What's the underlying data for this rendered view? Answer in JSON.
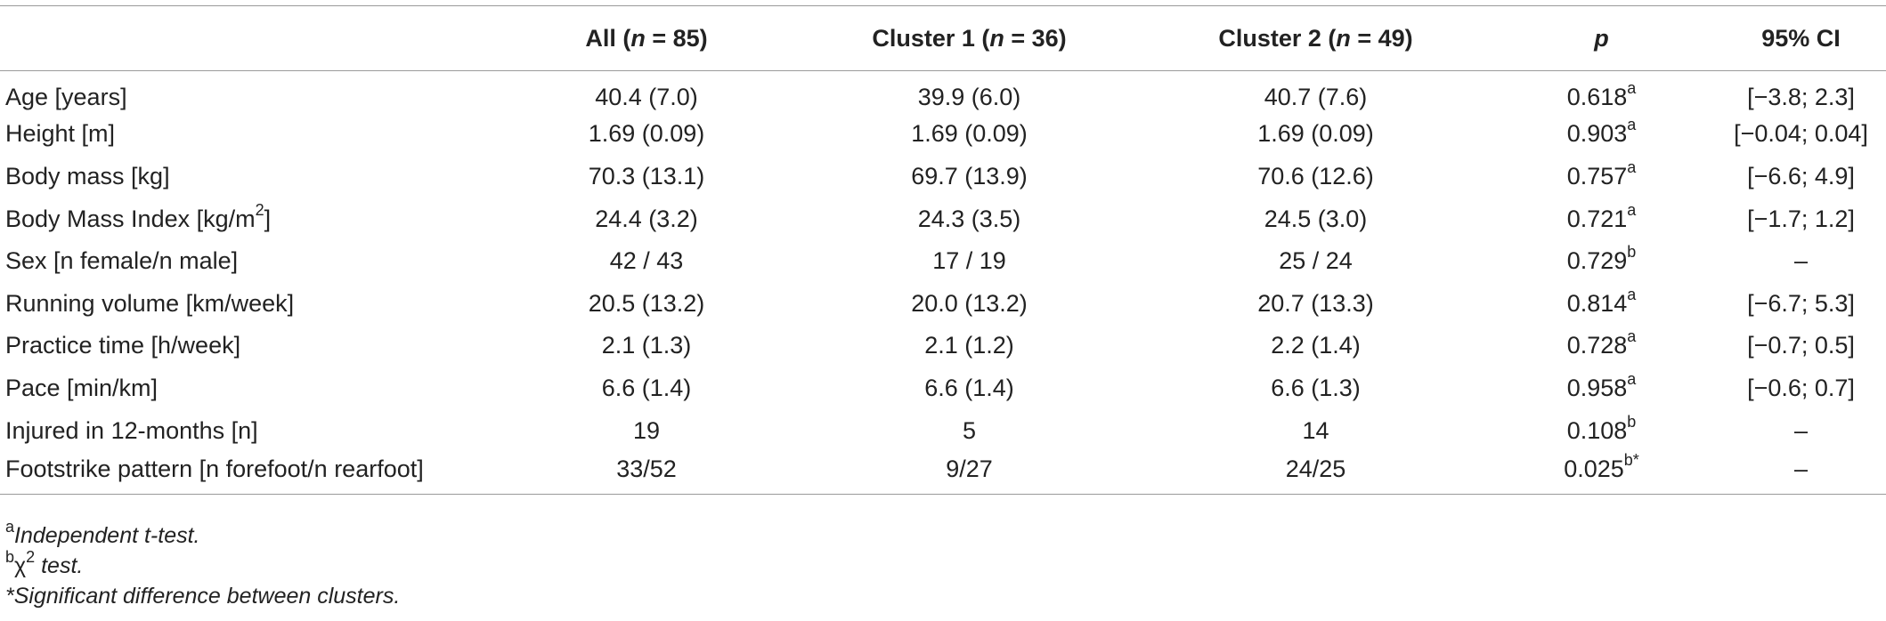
{
  "table": {
    "headers": [
      {
        "text": "",
        "parts": []
      },
      {
        "parts": [
          {
            "t": "All ("
          },
          {
            "t": "n",
            "i": true
          },
          {
            "t": " = 85)"
          }
        ]
      },
      {
        "parts": [
          {
            "t": "Cluster 1 ("
          },
          {
            "t": "n",
            "i": true
          },
          {
            "t": " = 36)"
          }
        ]
      },
      {
        "parts": [
          {
            "t": "Cluster 2 ("
          },
          {
            "t": "n",
            "i": true
          },
          {
            "t": " = 49)"
          }
        ]
      },
      {
        "parts": [
          {
            "t": "p",
            "i": true
          }
        ]
      },
      {
        "parts": [
          {
            "t": "95% CI"
          }
        ]
      }
    ],
    "rows": [
      {
        "label": "Age [years]",
        "all": "40.4 (7.0)",
        "c1": "39.9 (6.0)",
        "c2": "40.7 (7.6)",
        "p": "0.618",
        "p_sup": "a",
        "ci": "[−3.8; 2.3]"
      },
      {
        "label": "Height [m]",
        "all": "1.69 (0.09)",
        "c1": "1.69 (0.09)",
        "c2": "1.69 (0.09)",
        "p": "0.903",
        "p_sup": "a",
        "ci": "[−0.04; 0.04]"
      },
      {
        "label": "Body mass [kg]",
        "all": "70.3 (13.1)",
        "c1": "69.7 (13.9)",
        "c2": "70.6 (12.6)",
        "p": "0.757",
        "p_sup": "a",
        "ci": "[−6.6; 4.9]"
      },
      {
        "label": "Body Mass Index [kg/m",
        "label_sup": "2",
        "label_after": "]",
        "all": "24.4 (3.2)",
        "c1": "24.3 (3.5)",
        "c2": "24.5 (3.0)",
        "p": "0.721",
        "p_sup": "a",
        "ci": "[−1.7; 1.2]"
      },
      {
        "label": "Sex [n female/n male]",
        "all": "42 / 43",
        "c1": "17 / 19",
        "c2": "25 / 24",
        "p": "0.729",
        "p_sup": "b",
        "ci": "–"
      },
      {
        "label": "Running volume [km/week]",
        "all": "20.5 (13.2)",
        "c1": "20.0 (13.2)",
        "c2": "20.7 (13.3)",
        "p": "0.814",
        "p_sup": "a",
        "ci": "[−6.7; 5.3]"
      },
      {
        "label": "Practice time [h/week]",
        "all": "2.1 (1.3)",
        "c1": "2.1 (1.2)",
        "c2": "2.2 (1.4)",
        "p": "0.728",
        "p_sup": "a",
        "ci": "[−0.7; 0.5]"
      },
      {
        "label": "Pace [min/km]",
        "all": "6.6 (1.4)",
        "c1": "6.6 (1.4)",
        "c2": "6.6 (1.3)",
        "p": "0.958",
        "p_sup": "a",
        "ci": "[−0.6; 0.7]"
      },
      {
        "label": "Injured in 12-months [n]",
        "all": "19",
        "c1": "5",
        "c2": "14",
        "p": "0.108",
        "p_sup": "b",
        "ci": "–"
      },
      {
        "label": "Footstrike pattern [n forefoot/n rearfoot]",
        "all": "33/52",
        "c1": "9/27",
        "c2": "24/25",
        "p": "0.025",
        "p_sup": "b*",
        "ci": "–"
      }
    ]
  },
  "footnotes": [
    {
      "sup": "a",
      "text": "Independent t-test."
    },
    {
      "sup": "b",
      "text": "χ",
      "sup2": "2",
      "text2": " test."
    },
    {
      "sup": "",
      "text": "*Significant difference between clusters."
    }
  ]
}
